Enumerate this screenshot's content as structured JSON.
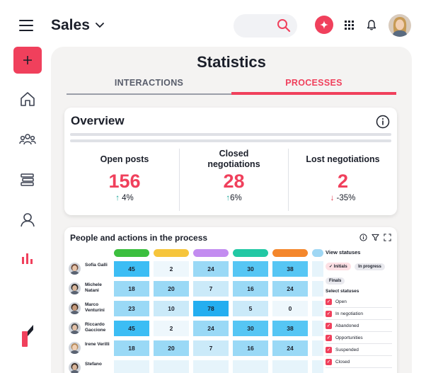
{
  "header": {
    "title": "Sales",
    "search": {
      "placeholder": ""
    }
  },
  "panel": {
    "title": "Statistics",
    "tabs": [
      {
        "label": "INTERACTIONS",
        "active": false
      },
      {
        "label": "PROCESSES",
        "active": true
      }
    ]
  },
  "overview": {
    "title": "Overview",
    "stats": [
      {
        "label": "Open posts",
        "value": "156",
        "change": "4%",
        "direction": "up"
      },
      {
        "label": "Closed negotiations",
        "value": "28",
        "change": "6%",
        "direction": "up"
      },
      {
        "label": "Lost negotiations",
        "value": "2",
        "change": "-35%",
        "direction": "down"
      }
    ]
  },
  "process": {
    "title": "People and actions in the process",
    "stage_colors": [
      "#3cbf3f",
      "#f6c53c",
      "#c38cf0",
      "#22c8a4",
      "#f4872c",
      "#9fd7f4"
    ],
    "people": [
      {
        "name": "Sofia Galli",
        "values": [
          "45",
          "2",
          "24",
          "30",
          "38",
          ""
        ]
      },
      {
        "name": "Michele Natani",
        "values": [
          "18",
          "20",
          "7",
          "16",
          "24",
          ""
        ]
      },
      {
        "name": "Marco Venturini",
        "values": [
          "23",
          "10",
          "78",
          "5",
          "0",
          ""
        ]
      },
      {
        "name": "Riccardo Gaccione",
        "values": [
          "45",
          "2",
          "24",
          "30",
          "38",
          ""
        ]
      },
      {
        "name": "Irene Verilli",
        "values": [
          "18",
          "20",
          "7",
          "16",
          "24",
          ""
        ]
      },
      {
        "name": "Stefano",
        "values": [
          "",
          "",
          "",
          "",
          "",
          ""
        ]
      }
    ],
    "view_statuses": {
      "title": "View statuses",
      "chips": [
        "Initials",
        "In progress",
        "Finals"
      ]
    },
    "select_statuses": {
      "title": "Select statuses",
      "items": [
        "Open",
        "In negotiation",
        "Abandoned",
        "Opportunities",
        "Suspended",
        "Closed"
      ]
    }
  }
}
